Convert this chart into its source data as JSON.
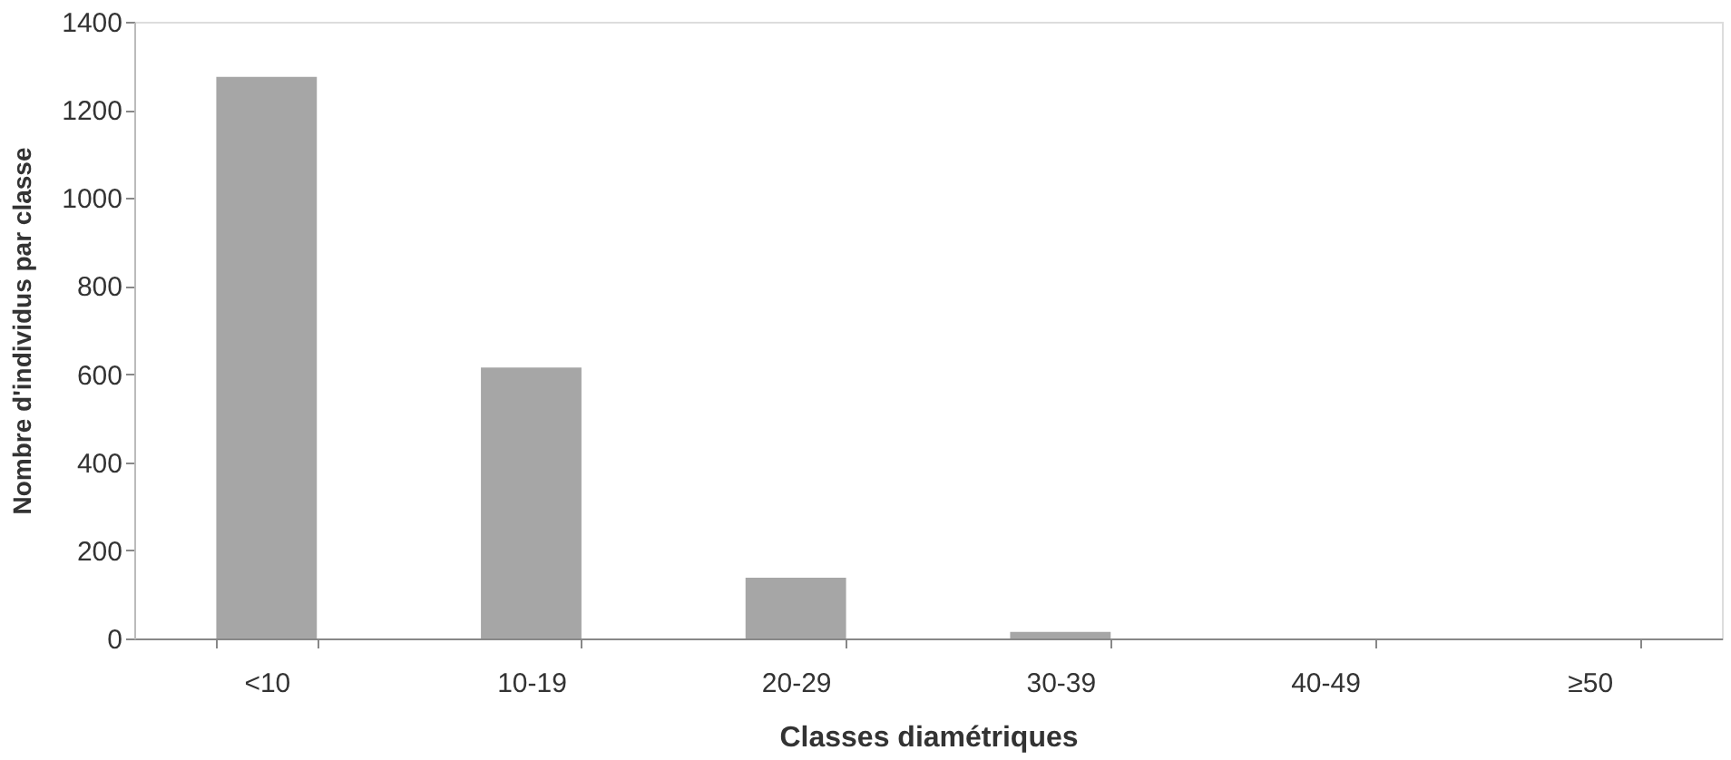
{
  "chart_data": {
    "type": "bar",
    "xlabel": "Classes diamétriques",
    "ylabel": "Nombre d'individus par classe",
    "categories": [
      "<10",
      "10-19",
      "20-29",
      "30-39",
      "40-49",
      "≥50"
    ],
    "values": [
      1275,
      615,
      138,
      15,
      0,
      0
    ],
    "color": "#a6a6a6",
    "ylim": [
      0,
      1400
    ],
    "yticks": [
      0,
      200,
      400,
      600,
      800,
      1000,
      1200,
      1400
    ],
    "grid": false
  }
}
